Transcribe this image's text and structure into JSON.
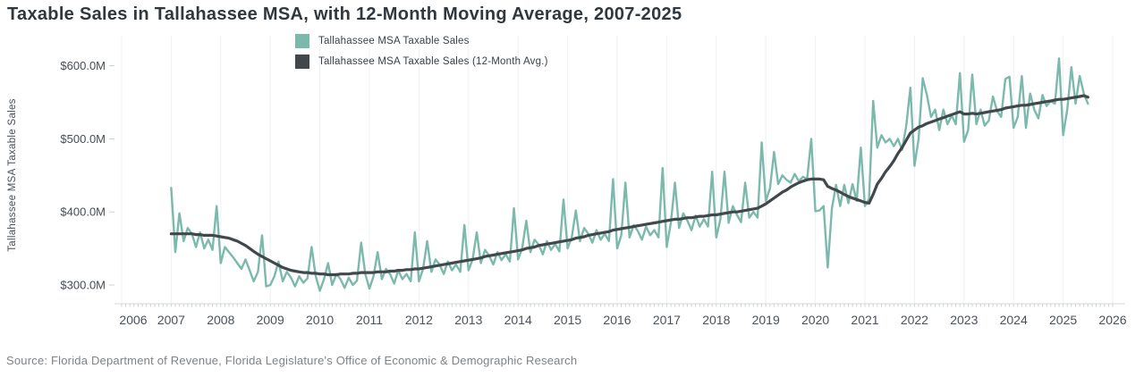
{
  "header": {
    "title": "Taxable Sales in Tallahassee MSA, with 12-Month Moving Average, 2007-2025"
  },
  "footer": {
    "source": "Source: Florida Department of Revenue, Florida Legislature's Office of Economic & Demographic Research"
  },
  "colors": {
    "sales_line": "#7cb9ad",
    "average_line": "#41474b",
    "gridline": "#eef0f3",
    "axis_line": "#e2e5e8",
    "minor_tick": "#ccd1d6",
    "tick_label": "#454d55",
    "year_label": "#4a525a"
  },
  "legend": {
    "items": [
      {
        "label": "Tallahassee MSA Taxable Sales",
        "color": "#7cb9ad"
      },
      {
        "label": "Tallahassee MSA Taxable Sales (12-Month Avg.)",
        "color": "#41474b"
      }
    ]
  },
  "y_axis": {
    "title": "Tallahassee MSA Taxable Sales",
    "ticks": [
      "$600.0M",
      "$500.0M",
      "$400.0M",
      "$300.0M"
    ],
    "tick_values": [
      600,
      500,
      400,
      300
    ]
  },
  "x_axis": {
    "ticks": [
      "2006",
      "2007",
      "2008",
      "2009",
      "2010",
      "2011",
      "2012",
      "2013",
      "2014",
      "2015",
      "2016",
      "2017",
      "2018",
      "2019",
      "2020",
      "2021",
      "2022",
      "2023",
      "2024",
      "2025",
      "2026"
    ]
  },
  "chart_data": {
    "type": "line",
    "title": "Taxable Sales in Tallahassee MSA, with 12-Month Moving Average, 2007-2025",
    "xlabel": "",
    "ylabel": "Tallahassee MSA Taxable Sales",
    "unit": "USD millions per month",
    "frequency": "monthly",
    "start_month": "2007-01",
    "end_month": "2025-07",
    "x_axis_range_years": [
      2006,
      2026
    ],
    "y_axis_ticks_M": [
      300,
      400,
      500,
      600
    ],
    "y_plot_range_M": [
      275,
      640
    ],
    "grid": "vertical-yearly",
    "legend_position": "top",
    "series": [
      {
        "name": "Tallahassee MSA Taxable Sales",
        "color": "#7cb9ad",
        "values": [
          433,
          345,
          398,
          360,
          378,
          370,
          352,
          372,
          350,
          362,
          348,
          408,
          330,
          352,
          345,
          338,
          330,
          322,
          335,
          320,
          305,
          318,
          368,
          298,
          300,
          312,
          332,
          305,
          318,
          310,
          298,
          312,
          303,
          309,
          352,
          312,
          292,
          308,
          330,
          300,
          315,
          308,
          296,
          310,
          300,
          306,
          358,
          315,
          295,
          312,
          345,
          308,
          322,
          315,
          302,
          320,
          308,
          315,
          305,
          372,
          305,
          322,
          360,
          318,
          335,
          328,
          315,
          332,
          320,
          328,
          318,
          382,
          320,
          335,
          372,
          330,
          348,
          340,
          328,
          345,
          334,
          342,
          332,
          405,
          335,
          350,
          388,
          345,
          362,
          355,
          342,
          360,
          348,
          356,
          346,
          417,
          350,
          365,
          402,
          360,
          378,
          370,
          358,
          375,
          362,
          370,
          360,
          445,
          350,
          368,
          440,
          365,
          382,
          374,
          362,
          380,
          368,
          375,
          365,
          460,
          352,
          385,
          440,
          378,
          398,
          388,
          375,
          395,
          380,
          390,
          380,
          455,
          365,
          390,
          455,
          385,
          408,
          396,
          386,
          440,
          392,
          400,
          392,
          495,
          415,
          432,
          482,
          438,
          450,
          444,
          440,
          452,
          442,
          448,
          445,
          500,
          401,
          402,
          408,
          324,
          405,
          437,
          408,
          437,
          412,
          438,
          415,
          488,
          408,
          418,
          552,
          488,
          505,
          495,
          500,
          490,
          500,
          485,
          518,
          570,
          463,
          500,
          583,
          560,
          530,
          540,
          512,
          540,
          520,
          532,
          520,
          590,
          496,
          512,
          588,
          520,
          540,
          518,
          525,
          558,
          538,
          530,
          582,
          585,
          515,
          530,
          586,
          515,
          562,
          540,
          528,
          560,
          545,
          552,
          548,
          610,
          505,
          540,
          598,
          548,
          586,
          562,
          548
        ]
      },
      {
        "name": "Tallahassee MSA Taxable Sales (12-Month Avg.)",
        "color": "#41474b",
        "values": [
          370,
          370,
          370,
          370,
          370,
          370,
          369,
          369,
          368,
          368,
          368,
          367,
          366,
          365,
          364,
          362,
          360,
          357,
          354,
          350,
          346,
          342,
          339,
          336,
          333,
          330,
          327,
          324,
          322,
          320,
          319,
          318,
          317,
          317,
          316,
          316,
          315,
          315,
          314,
          314,
          314,
          315,
          315,
          315,
          316,
          316,
          317,
          317,
          317,
          317,
          318,
          318,
          318,
          319,
          319,
          320,
          320,
          321,
          321,
          322,
          322,
          323,
          324,
          325,
          326,
          327,
          328,
          329,
          330,
          331,
          332,
          333,
          334,
          335,
          336,
          337,
          339,
          340,
          341,
          342,
          343,
          344,
          345,
          346,
          347,
          348,
          350,
          351,
          352,
          354,
          355,
          356,
          357,
          358,
          359,
          360,
          361,
          362,
          364,
          365,
          366,
          368,
          369,
          370,
          371,
          372,
          373,
          375,
          376,
          377,
          378,
          379,
          380,
          381,
          382,
          383,
          384,
          385,
          386,
          387,
          388,
          389,
          390,
          390,
          391,
          392,
          392,
          393,
          394,
          394,
          395,
          396,
          396,
          397,
          398,
          399,
          400,
          400,
          401,
          402,
          403,
          404,
          405,
          408,
          411,
          415,
          419,
          423,
          427,
          430,
          434,
          437,
          440,
          442,
          444,
          445,
          445,
          445,
          444,
          435,
          432,
          430,
          427,
          424,
          421,
          419,
          417,
          415,
          413,
          412,
          424,
          438,
          446,
          455,
          462,
          470,
          480,
          488,
          498,
          508,
          512,
          516,
          518,
          521,
          523,
          525,
          527,
          529,
          531,
          533,
          535,
          537,
          534,
          534,
          535,
          534,
          535,
          536,
          537,
          538,
          539,
          540,
          542,
          543,
          544,
          545,
          546,
          546,
          547,
          548,
          549,
          550,
          551,
          552,
          553,
          554,
          554,
          555,
          556,
          557,
          558,
          559,
          557
        ]
      }
    ]
  }
}
